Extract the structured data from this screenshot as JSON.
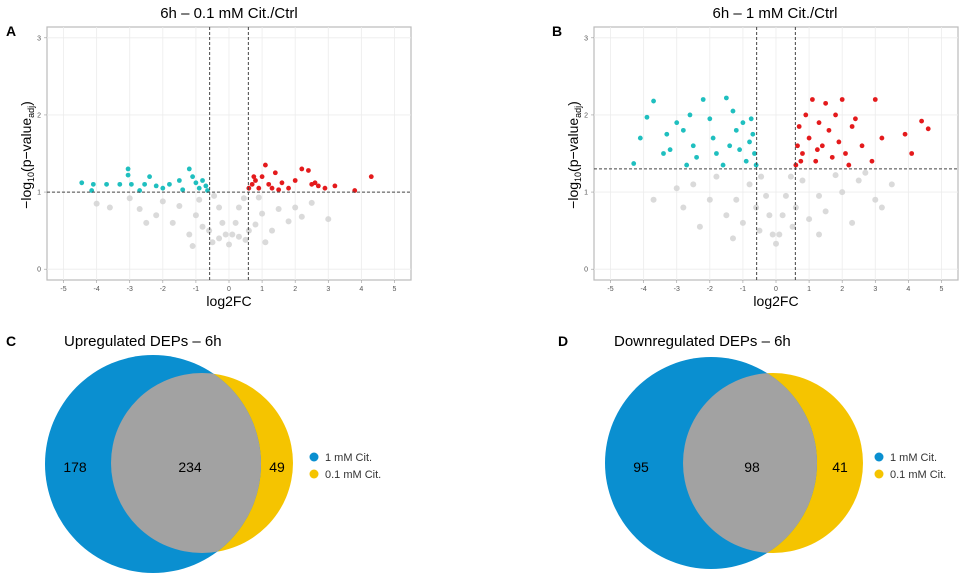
{
  "colors": {
    "down": "#1fbfbf",
    "up": "#e41a1c",
    "ns": "#d4d4d4",
    "venn_1mM": "#0a8fd0",
    "venn_01mM": "#f5c400",
    "venn_overlap": "#a2a2a2"
  },
  "chart_data": [
    {
      "panel": "A",
      "type": "scatter",
      "title": "6h – 0.1 mM Cit./Ctrl",
      "xlabel": "log2FC",
      "ylabel": "−log10(p−value adj)",
      "xlim": [
        -5.5,
        5.5
      ],
      "ylim": [
        -0.14,
        3.14
      ],
      "xticks": [
        -5,
        -4,
        -3,
        -2,
        -1,
        0,
        1,
        2,
        3,
        4,
        5
      ],
      "yticks": [
        0,
        1,
        2,
        3
      ],
      "grid": true,
      "thresholds": {
        "log2FC": [
          -0.585,
          0.585
        ],
        "neg_log10_p": 1
      },
      "series": [
        {
          "key": "ns",
          "points": [
            [
              0,
              0.32
            ],
            [
              -0.1,
              0.45
            ],
            [
              0.1,
              0.45
            ],
            [
              -0.2,
              0.6
            ],
            [
              0.2,
              0.6
            ],
            [
              -0.3,
              0.8
            ],
            [
              0.3,
              0.8
            ],
            [
              -0.45,
              0.95
            ],
            [
              0.45,
              0.92
            ],
            [
              -0.6,
              0.5
            ],
            [
              0.6,
              0.5
            ],
            [
              -1,
              0.7
            ],
            [
              1,
              0.72
            ],
            [
              -1.2,
              0.45
            ],
            [
              1.3,
              0.5
            ],
            [
              -1.5,
              0.82
            ],
            [
              1.5,
              0.78
            ],
            [
              -2,
              0.88
            ],
            [
              2,
              0.8
            ],
            [
              -2.5,
              0.6
            ],
            [
              2.5,
              0.86
            ],
            [
              -3,
              0.92
            ],
            [
              3,
              0.65
            ],
            [
              -3.6,
              0.8
            ],
            [
              -4,
              0.85
            ],
            [
              -0.8,
              0.55
            ],
            [
              0.8,
              0.58
            ],
            [
              -0.5,
              0.35
            ],
            [
              0.5,
              0.38
            ],
            [
              -1.7,
              0.6
            ],
            [
              1.8,
              0.62
            ],
            [
              -0.9,
              0.9
            ],
            [
              0.9,
              0.93
            ],
            [
              -2.2,
              0.7
            ],
            [
              2.2,
              0.68
            ],
            [
              -0.3,
              0.4
            ],
            [
              0.3,
              0.42
            ],
            [
              -1.1,
              0.3
            ],
            [
              1.1,
              0.35
            ],
            [
              -2.7,
              0.78
            ]
          ]
        },
        {
          "key": "down",
          "points": [
            [
              -4.45,
              1.12
            ],
            [
              -4.1,
              1.1
            ],
            [
              -4.15,
              1.02
            ],
            [
              -3.7,
              1.1
            ],
            [
              -3.3,
              1.1
            ],
            [
              -3.05,
              1.3
            ],
            [
              -3.05,
              1.22
            ],
            [
              -2.95,
              1.1
            ],
            [
              -2.55,
              1.1
            ],
            [
              -2.4,
              1.2
            ],
            [
              -2.2,
              1.08
            ],
            [
              -2.0,
              1.05
            ],
            [
              -1.8,
              1.1
            ],
            [
              -1.5,
              1.15
            ],
            [
              -1.2,
              1.3
            ],
            [
              -1.0,
              1.12
            ],
            [
              -0.9,
              1.05
            ],
            [
              -0.7,
              1.08
            ],
            [
              -0.65,
              1.02
            ],
            [
              -1.4,
              1.03
            ],
            [
              -2.7,
              1.02
            ],
            [
              -1.1,
              1.2
            ],
            [
              -0.8,
              1.15
            ]
          ]
        },
        {
          "key": "up",
          "points": [
            [
              0.6,
              1.05
            ],
            [
              0.7,
              1.1
            ],
            [
              0.8,
              1.15
            ],
            [
              0.9,
              1.05
            ],
            [
              1.0,
              1.2
            ],
            [
              1.2,
              1.1
            ],
            [
              1.4,
              1.25
            ],
            [
              1.6,
              1.12
            ],
            [
              1.8,
              1.05
            ],
            [
              2.0,
              1.15
            ],
            [
              2.2,
              1.3
            ],
            [
              2.4,
              1.28
            ],
            [
              2.5,
              1.1
            ],
            [
              2.7,
              1.08
            ],
            [
              2.9,
              1.05
            ],
            [
              3.2,
              1.08
            ],
            [
              3.8,
              1.02
            ],
            [
              4.3,
              1.2
            ],
            [
              1.1,
              1.35
            ],
            [
              1.5,
              1.03
            ],
            [
              0.75,
              1.2
            ],
            [
              1.3,
              1.05
            ],
            [
              2.6,
              1.12
            ]
          ]
        }
      ]
    },
    {
      "panel": "B",
      "type": "scatter",
      "title": "6h – 1 mM Cit./Ctrl",
      "xlabel": "log2FC",
      "ylabel": "−log10(p−value adj)",
      "xlim": [
        -5.5,
        5.5
      ],
      "ylim": [
        -0.14,
        3.14
      ],
      "xticks": [
        -5,
        -4,
        -3,
        -2,
        -1,
        0,
        1,
        2,
        3,
        4,
        5
      ],
      "yticks": [
        0,
        1,
        2,
        3
      ],
      "grid": true,
      "thresholds": {
        "log2FC": [
          -0.585,
          0.585
        ],
        "neg_log10_p": 1.3
      },
      "series": [
        {
          "key": "ns",
          "points": [
            [
              0,
              0.33
            ],
            [
              -0.1,
              0.45
            ],
            [
              0.1,
              0.45
            ],
            [
              -0.2,
              0.7
            ],
            [
              0.2,
              0.7
            ],
            [
              -0.3,
              0.95
            ],
            [
              0.3,
              0.95
            ],
            [
              -0.45,
              1.2
            ],
            [
              0.45,
              1.2
            ],
            [
              -0.6,
              0.8
            ],
            [
              0.6,
              0.8
            ],
            [
              -1,
              0.6
            ],
            [
              1,
              0.65
            ],
            [
              -1.2,
              0.9
            ],
            [
              1.3,
              0.95
            ],
            [
              -1.5,
              0.7
            ],
            [
              1.5,
              0.75
            ],
            [
              -2,
              0.9
            ],
            [
              2,
              1.0
            ],
            [
              -2.5,
              1.1
            ],
            [
              2.5,
              1.15
            ],
            [
              -3,
              1.05
            ],
            [
              3,
              0.9
            ],
            [
              -3.7,
              0.9
            ],
            [
              3.5,
              1.1
            ],
            [
              -0.8,
              1.1
            ],
            [
              0.8,
              1.15
            ],
            [
              -1.8,
              1.2
            ],
            [
              1.8,
              1.22
            ],
            [
              -2.3,
              0.55
            ],
            [
              2.3,
              0.6
            ],
            [
              -1.3,
              0.4
            ],
            [
              1.3,
              0.45
            ],
            [
              -0.5,
              0.5
            ],
            [
              0.5,
              0.55
            ],
            [
              3.2,
              0.8
            ],
            [
              -2.8,
              0.8
            ],
            [
              2.7,
              1.25
            ]
          ]
        },
        {
          "key": "down",
          "points": [
            [
              -4.3,
              1.37
            ],
            [
              -4.1,
              1.7
            ],
            [
              -3.7,
              2.18
            ],
            [
              -3.9,
              1.97
            ],
            [
              -3.3,
              1.75
            ],
            [
              -3.2,
              1.55
            ],
            [
              -3.0,
              1.9
            ],
            [
              -2.8,
              1.8
            ],
            [
              -2.6,
              2.0
            ],
            [
              -2.5,
              1.6
            ],
            [
              -2.4,
              1.45
            ],
            [
              -2.2,
              2.2
            ],
            [
              -2.0,
              1.95
            ],
            [
              -1.9,
              1.7
            ],
            [
              -1.8,
              1.5
            ],
            [
              -1.6,
              1.35
            ],
            [
              -1.5,
              2.22
            ],
            [
              -1.3,
              2.05
            ],
            [
              -1.2,
              1.8
            ],
            [
              -1.1,
              1.55
            ],
            [
              -1.0,
              1.9
            ],
            [
              -0.9,
              1.4
            ],
            [
              -0.8,
              1.65
            ],
            [
              -0.7,
              1.75
            ],
            [
              -0.65,
              1.5
            ],
            [
              -0.6,
              1.35
            ],
            [
              -0.75,
              1.95
            ],
            [
              -1.4,
              1.6
            ],
            [
              -2.7,
              1.35
            ],
            [
              -3.4,
              1.5
            ]
          ]
        },
        {
          "key": "up",
          "points": [
            [
              0.6,
              1.35
            ],
            [
              0.65,
              1.6
            ],
            [
              0.7,
              1.85
            ],
            [
              0.8,
              1.5
            ],
            [
              0.9,
              2.0
            ],
            [
              1.0,
              1.7
            ],
            [
              1.1,
              2.2
            ],
            [
              1.2,
              1.4
            ],
            [
              1.3,
              1.9
            ],
            [
              1.4,
              1.6
            ],
            [
              1.5,
              2.15
            ],
            [
              1.6,
              1.8
            ],
            [
              1.7,
              1.45
            ],
            [
              1.8,
              2.0
            ],
            [
              1.9,
              1.65
            ],
            [
              2.0,
              2.2
            ],
            [
              2.1,
              1.5
            ],
            [
              2.3,
              1.85
            ],
            [
              2.4,
              1.95
            ],
            [
              2.6,
              1.6
            ],
            [
              2.9,
              1.4
            ],
            [
              3.0,
              2.2
            ],
            [
              3.2,
              1.7
            ],
            [
              3.9,
              1.75
            ],
            [
              4.1,
              1.5
            ],
            [
              4.4,
              1.92
            ],
            [
              4.6,
              1.82
            ],
            [
              0.75,
              1.4
            ],
            [
              1.25,
              1.55
            ],
            [
              2.2,
              1.35
            ]
          ]
        }
      ]
    },
    {
      "panel": "C",
      "type": "venn",
      "title": "Upregulated DEPs – 6h",
      "sets": [
        {
          "name": "1 mM Cit.",
          "only": 178
        },
        {
          "name": "0.1 mM Cit.",
          "only": 49
        }
      ],
      "overlap": 234,
      "legend": "right"
    },
    {
      "panel": "D",
      "type": "venn",
      "title": "Downregulated DEPs – 6h",
      "sets": [
        {
          "name": "1 mM Cit.",
          "only": 95
        },
        {
          "name": "0.1 mM Cit.",
          "only": 41
        }
      ],
      "overlap": 98,
      "legend": "right"
    }
  ]
}
